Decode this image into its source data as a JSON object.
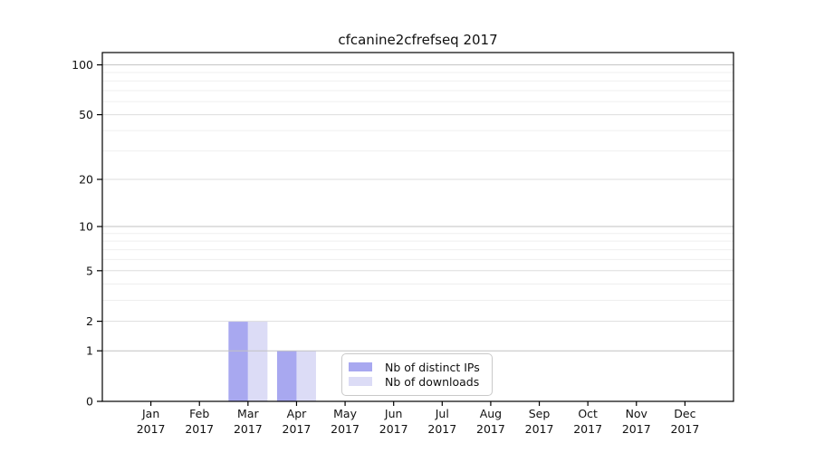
{
  "chart_data": {
    "type": "bar",
    "title": "cfcanine2cfrefseq 2017",
    "categories": [
      "Jan",
      "Feb",
      "Mar",
      "Apr",
      "May",
      "Jun",
      "Jul",
      "Aug",
      "Sep",
      "Oct",
      "Nov",
      "Dec"
    ],
    "category_year": "2017",
    "series": [
      {
        "name": "Nb of distinct IPs",
        "color": "#a8a8f0",
        "values": [
          0,
          0,
          2,
          1,
          0,
          0,
          0,
          0,
          0,
          0,
          0,
          0
        ]
      },
      {
        "name": "Nb of downloads",
        "color": "#dcdcf6",
        "values": [
          0,
          0,
          2,
          1,
          0,
          0,
          0,
          0,
          0,
          0,
          0,
          0
        ]
      }
    ],
    "y_scale": "log1p",
    "ylim": [
      0,
      118.6
    ],
    "y_tick_labels": [
      0,
      1,
      2,
      5,
      10,
      20,
      50,
      100
    ],
    "y_power_gridlines": [
      1,
      10,
      100
    ],
    "y_labeled_gridlines": [
      2,
      5,
      20,
      50
    ],
    "y_minor_gridlines": [
      3,
      4,
      6,
      7,
      8,
      9,
      30,
      40,
      60,
      70,
      80,
      90
    ],
    "grid": {
      "power_color": "#c2c2c2",
      "labeled_color": "#dddddd",
      "minor_color": "#efefef"
    },
    "axis_color": "#000000",
    "text_color": "#111111",
    "legend_position": "lower center"
  }
}
